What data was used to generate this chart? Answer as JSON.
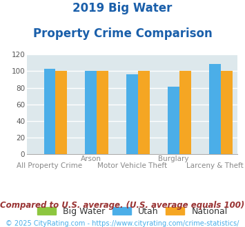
{
  "title_line1": "2019 Big Water",
  "title_line2": "Property Crime Comparison",
  "groups": [
    "All Property Crime",
    "Arson",
    "Motor Vehicle Theft",
    "Burglary",
    "Larceny & Theft"
  ],
  "big_water": [
    0,
    0,
    0,
    0,
    0
  ],
  "utah": [
    103,
    100,
    96,
    81,
    109
  ],
  "national": [
    100,
    100,
    100,
    100,
    100
  ],
  "color_big_water": "#8dc63f",
  "color_utah": "#4baee8",
  "color_national": "#f5a623",
  "ylim": [
    0,
    120
  ],
  "yticks": [
    0,
    20,
    40,
    60,
    80,
    100,
    120
  ],
  "plot_bg": "#dde8ec",
  "fig_bg": "#ffffff",
  "grid_color": "#ffffff",
  "title_color": "#1a5faa",
  "top_labels": [
    "",
    "Arson",
    "",
    "Burglary",
    ""
  ],
  "bottom_labels": [
    "All Property Crime",
    "",
    "Motor Vehicle Theft",
    "",
    "Larceny & Theft"
  ],
  "legend_labels": [
    "Big Water",
    "Utah",
    "National"
  ],
  "bar_width": 0.28,
  "title_fontsize": 12,
  "footer_text": "Compared to U.S. average. (U.S. average equals 100)",
  "copyright_text": "© 2025 CityRating.com - https://www.cityrating.com/crime-statistics/",
  "footer_color": "#993333",
  "copyright_color": "#4baee8",
  "label_color": "#888888"
}
